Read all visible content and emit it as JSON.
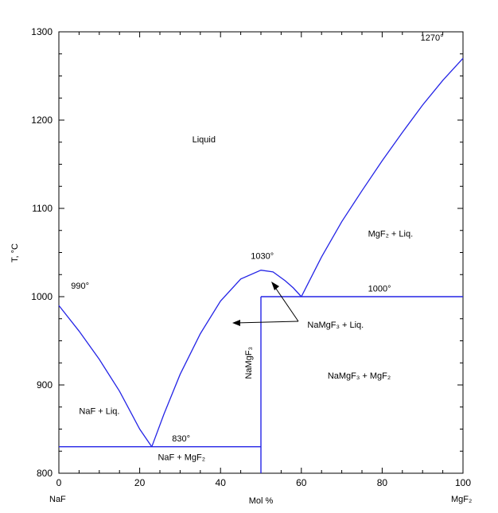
{
  "chart_data": {
    "type": "phase-diagram",
    "xlim": [
      0,
      100
    ],
    "ylim": [
      800,
      1300
    ],
    "ylabel": "T, °C",
    "xlabel": "Mol %",
    "x_left_component": "NaF",
    "x_right_component": "MgF₂",
    "x_ticks": [
      0,
      20,
      40,
      60,
      80,
      100
    ],
    "y_ticks": [
      800,
      900,
      1000,
      1100,
      1200,
      1300
    ],
    "liquidus_naf": [
      [
        0,
        990
      ],
      [
        5,
        961
      ],
      [
        10,
        929
      ],
      [
        15,
        893
      ],
      [
        20,
        850
      ],
      [
        23,
        830
      ]
    ],
    "liquidus_namgf3": [
      [
        23,
        830
      ],
      [
        26,
        867
      ],
      [
        30,
        912
      ],
      [
        35,
        958
      ],
      [
        40,
        995
      ],
      [
        45,
        1020
      ],
      [
        50,
        1030
      ],
      [
        53,
        1028
      ],
      [
        56,
        1018
      ],
      [
        58,
        1010
      ],
      [
        60,
        1000
      ]
    ],
    "liquidus_mgf2": [
      [
        60,
        1000
      ],
      [
        65,
        1045
      ],
      [
        70,
        1085
      ],
      [
        75,
        1120
      ],
      [
        80,
        1154
      ],
      [
        85,
        1186
      ],
      [
        90,
        1217
      ],
      [
        95,
        1245
      ],
      [
        100,
        1270
      ]
    ],
    "eutectic_naf": {
      "x": [
        0,
        50
      ],
      "y": 830
    },
    "peritectic": {
      "x": [
        50,
        100
      ],
      "y": 1000
    },
    "compound_line": {
      "x": 50,
      "y": [
        800,
        1000
      ]
    },
    "annotations": {
      "t990": "990°",
      "t1270": "1270°",
      "t1030": "1030°",
      "t1000": "1000°",
      "t830": "830°",
      "liquid": "Liquid",
      "mgf2_liq": "MgF₂ + Liq.",
      "namgf3_liq": "NaMgF₃ + Liq.",
      "namgf3_mgf2": "NaMgF₃ + MgF₂",
      "naf_liq": "NaF + Liq.",
      "naf_mgf2": "NaF + MgF₂",
      "compound": "NaMgF₃"
    },
    "line_color": "#2424e6"
  }
}
